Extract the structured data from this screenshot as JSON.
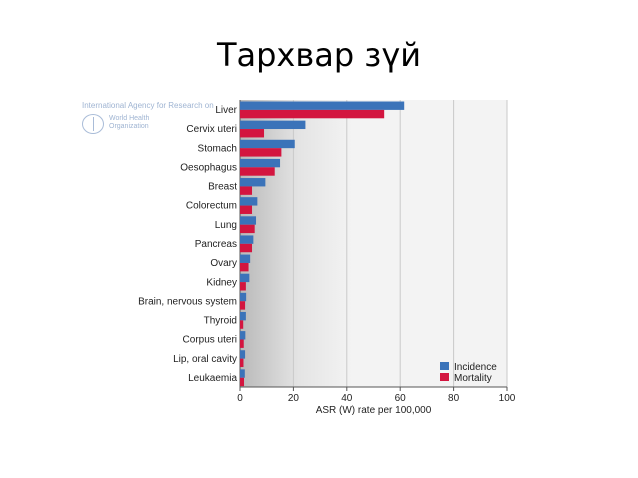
{
  "slide": {
    "title": "Тархвар зүй"
  },
  "logo": {
    "iarc_text": "International Agency for Research on",
    "who_text": "World Health\nOrganization"
  },
  "colors": {
    "incidence": "#3b73b9",
    "mortality": "#d3153f",
    "plot_bg": "#f3f3f3"
  },
  "chart_data": {
    "type": "bar",
    "orientation": "horizontal",
    "title": "",
    "xlabel": "ASR (W) rate per 100,000",
    "ylabel": "",
    "xlim": [
      0,
      100
    ],
    "xticks": [
      0,
      20,
      40,
      60,
      80,
      100
    ],
    "grid": true,
    "legend_position": "bottom-right",
    "categories": [
      "Liver",
      "Cervix uteri",
      "Stomach",
      "Oesophagus",
      "Breast",
      "Colorectum",
      "Lung",
      "Pancreas",
      "Ovary",
      "Kidney",
      "Brain, nervous system",
      "Thyroid",
      "Corpus uteri",
      "Lip, oral cavity",
      "Leukaemia"
    ],
    "series": [
      {
        "name": "Incidence",
        "values": [
          61.5,
          24.5,
          20.5,
          15.0,
          9.5,
          6.5,
          6.0,
          5.0,
          3.8,
          3.5,
          2.3,
          2.2,
          2.0,
          1.9,
          1.8
        ]
      },
      {
        "name": "Mortality",
        "values": [
          54.0,
          9.0,
          15.5,
          13.0,
          4.5,
          4.5,
          5.5,
          4.5,
          3.2,
          2.2,
          1.9,
          1.2,
          1.4,
          1.3,
          1.5
        ]
      }
    ]
  }
}
